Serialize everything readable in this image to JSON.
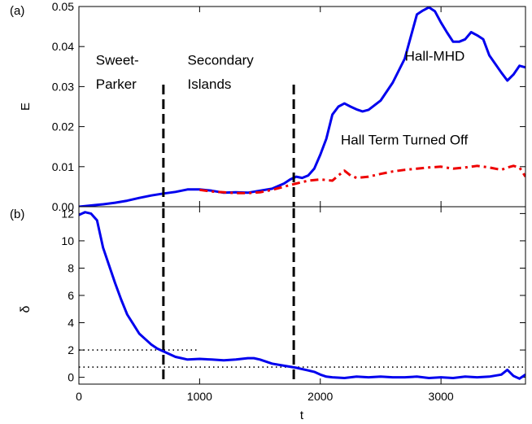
{
  "chart_data": [
    {
      "panel_label": "(a)",
      "type": "line",
      "ylabel": "E",
      "xlabel": "",
      "xlim": [
        0,
        3700
      ],
      "ylim": [
        0,
        0.05
      ],
      "yticks": [
        0.0,
        0.01,
        0.02,
        0.03,
        0.04,
        0.05
      ],
      "ytick_labels": [
        "0.00",
        "0.01",
        "0.02",
        "0.03",
        "0.04",
        "0.05"
      ],
      "xticks": [
        0,
        1000,
        2000,
        3000
      ],
      "xtick_labels": [
        "",
        "",
        "",
        ""
      ],
      "grid": false,
      "series": [
        {
          "name": "Hall-MHD",
          "color": "#0000ee",
          "style": "solid",
          "x": [
            0,
            100,
            200,
            300,
            400,
            500,
            600,
            700,
            800,
            850,
            900,
            1000,
            1100,
            1200,
            1300,
            1400,
            1500,
            1600,
            1700,
            1750,
            1800,
            1850,
            1900,
            1950,
            2000,
            2050,
            2100,
            2150,
            2200,
            2250,
            2300,
            2350,
            2400,
            2500,
            2600,
            2700,
            2800,
            2850,
            2900,
            2950,
            3000,
            3050,
            3100,
            3150,
            3200,
            3250,
            3300,
            3350,
            3400,
            3500,
            3550,
            3600,
            3650,
            3700
          ],
          "y": [
            0.0,
            0.0003,
            0.0006,
            0.001,
            0.0015,
            0.0022,
            0.0028,
            0.0033,
            0.0037,
            0.004,
            0.0043,
            0.0043,
            0.004,
            0.0035,
            0.0036,
            0.0035,
            0.004,
            0.0045,
            0.0058,
            0.0068,
            0.0075,
            0.0072,
            0.0078,
            0.0095,
            0.013,
            0.017,
            0.023,
            0.025,
            0.0258,
            0.025,
            0.0243,
            0.0238,
            0.0242,
            0.0265,
            0.031,
            0.037,
            0.048,
            0.049,
            0.0498,
            0.0488,
            0.046,
            0.0435,
            0.0412,
            0.0412,
            0.0418,
            0.0436,
            0.0428,
            0.0418,
            0.0378,
            0.0335,
            0.0315,
            0.033,
            0.0352,
            0.0348
          ]
        },
        {
          "name": "Hall Term Turned Off",
          "color": "#ee0000",
          "style": "dashdot",
          "x": [
            1000,
            1100,
            1200,
            1300,
            1400,
            1500,
            1600,
            1700,
            1800,
            1900,
            2000,
            2100,
            2150,
            2200,
            2250,
            2300,
            2400,
            2500,
            2600,
            2700,
            2800,
            2900,
            3000,
            3100,
            3200,
            3300,
            3400,
            3500,
            3550,
            3600,
            3650,
            3700
          ],
          "y": [
            0.0042,
            0.0038,
            0.0036,
            0.0034,
            0.0034,
            0.0036,
            0.0042,
            0.005,
            0.0058,
            0.0065,
            0.0068,
            0.0065,
            0.0078,
            0.009,
            0.0078,
            0.0072,
            0.0075,
            0.0082,
            0.0088,
            0.0092,
            0.0095,
            0.0098,
            0.01,
            0.0095,
            0.0098,
            0.0102,
            0.0098,
            0.0092,
            0.0098,
            0.0102,
            0.0098,
            0.0075
          ]
        }
      ],
      "vlines": [
        700,
        1780
      ],
      "annotations": [
        {
          "text": "Sweet-",
          "x": 140,
          "y": 0.0355
        },
        {
          "text": "Parker",
          "x": 140,
          "y": 0.0295
        },
        {
          "text": "Secondary",
          "x": 900,
          "y": 0.0355
        },
        {
          "text": "Islands",
          "x": 900,
          "y": 0.0295
        },
        {
          "text": "Hall-MHD",
          "x": 2700,
          "y": 0.0365
        },
        {
          "text": "Hall Term Turned Off",
          "x": 2170,
          "y": 0.0155
        }
      ]
    },
    {
      "panel_label": "(b)",
      "type": "line",
      "ylabel": "δ",
      "xlabel": "t",
      "xlim": [
        0,
        3700
      ],
      "ylim": [
        -0.5,
        12.5
      ],
      "yticks": [
        0,
        2,
        4,
        6,
        8,
        10,
        12
      ],
      "ytick_labels": [
        "0",
        "2",
        "4",
        "6",
        "8",
        "10",
        "12"
      ],
      "xticks": [
        0,
        1000,
        2000,
        3000
      ],
      "xtick_labels": [
        "0",
        "1000",
        "2000",
        "3000"
      ],
      "grid": false,
      "series": [
        {
          "name": "",
          "color": "#0000ee",
          "style": "solid",
          "x": [
            0,
            50,
            100,
            150,
            200,
            250,
            300,
            350,
            400,
            450,
            500,
            550,
            600,
            650,
            700,
            750,
            800,
            850,
            900,
            1000,
            1100,
            1200,
            1300,
            1400,
            1450,
            1500,
            1550,
            1600,
            1700,
            1800,
            1900,
            1950,
            2000,
            2050,
            2100,
            2200,
            2300,
            2400,
            2500,
            2600,
            2700,
            2800,
            2900,
            3000,
            3100,
            3200,
            3300,
            3400,
            3500,
            3550,
            3600,
            3650,
            3700
          ],
          "y": [
            11.9,
            12.1,
            12.0,
            11.5,
            9.5,
            8.2,
            6.9,
            5.7,
            4.6,
            3.9,
            3.2,
            2.8,
            2.4,
            2.1,
            1.9,
            1.7,
            1.5,
            1.4,
            1.3,
            1.35,
            1.3,
            1.25,
            1.3,
            1.4,
            1.4,
            1.3,
            1.15,
            1.0,
            0.85,
            0.7,
            0.5,
            0.4,
            0.2,
            0.05,
            0.0,
            -0.05,
            0.05,
            0.0,
            0.05,
            0.0,
            0.0,
            0.05,
            -0.05,
            0.0,
            -0.05,
            0.05,
            0.0,
            0.05,
            0.2,
            0.55,
            0.1,
            -0.1,
            0.2
          ]
        }
      ],
      "hlines": [
        {
          "y": 2.0,
          "x_range": [
            0,
            1000
          ]
        },
        {
          "y": 0.75,
          "x_range": [
            0,
            3700
          ]
        }
      ],
      "vlines": [
        700,
        1780
      ],
      "annotations": []
    }
  ]
}
